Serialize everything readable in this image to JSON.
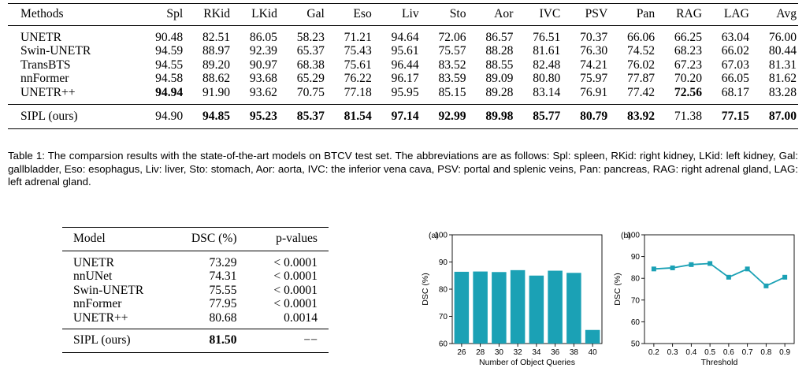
{
  "table1": {
    "headers": [
      "Methods",
      "Spl",
      "RKid",
      "LKid",
      "Gal",
      "Eso",
      "Liv",
      "Sto",
      "Aor",
      "IVC",
      "PSV",
      "Pan",
      "RAG",
      "LAG",
      "Avg"
    ],
    "rows": [
      [
        "UNETR",
        "90.48",
        "82.51",
        "86.05",
        "58.23",
        "71.21",
        "94.64",
        "72.06",
        "86.57",
        "76.51",
        "70.37",
        "66.06",
        "66.25",
        "63.04",
        "76.00"
      ],
      [
        "Swin-UNETR",
        "94.59",
        "88.97",
        "92.39",
        "65.37",
        "75.43",
        "95.61",
        "75.57",
        "88.28",
        "81.61",
        "76.30",
        "74.52",
        "68.23",
        "66.02",
        "80.44"
      ],
      [
        "TransBTS",
        "94.55",
        "89.20",
        "90.97",
        "68.38",
        "75.61",
        "96.44",
        "83.52",
        "88.55",
        "82.48",
        "74.21",
        "76.02",
        "67.23",
        "67.03",
        "81.31"
      ],
      [
        "nnFormer",
        "94.58",
        "88.62",
        "93.68",
        "65.29",
        "76.22",
        "96.17",
        "83.59",
        "89.09",
        "80.80",
        "75.97",
        "77.87",
        "70.20",
        "66.05",
        "81.62"
      ],
      [
        "UNETR++",
        "94.94",
        "91.90",
        "93.62",
        "70.75",
        "77.18",
        "95.95",
        "85.15",
        "89.28",
        "83.14",
        "76.91",
        "77.42",
        "72.56",
        "68.17",
        "83.28"
      ]
    ],
    "footer": [
      "SIPL (ours)",
      "94.90",
      "94.85",
      "95.23",
      "85.37",
      "81.54",
      "97.14",
      "92.99",
      "89.98",
      "85.77",
      "80.79",
      "83.92",
      "71.38",
      "77.15",
      "87.00"
    ],
    "bold": {
      "body": [
        [
          4,
          1
        ],
        [
          4,
          12
        ]
      ],
      "footer": [
        2,
        3,
        4,
        5,
        6,
        7,
        8,
        9,
        10,
        11,
        13,
        14
      ]
    },
    "caption": "Table 1: The comparsion results with the state-of-the-art models on BTCV test set. The abbreviations are as follows: Spl: spleen, RKid: right kidney, LKid: left kidney, Gal: gallbladder, Eso: esophagus, Liv: liver, Sto: stomach, Aor: aorta, IVC: the inferior vena cava, PSV: portal and splenic veins, Pan: pancreas, RAG: right adrenal gland, LAG: left adrenal gland."
  },
  "table2": {
    "headers": [
      "Model",
      "DSC (%)",
      "p-values"
    ],
    "rows": [
      [
        "UNETR",
        "73.29",
        "< 0.0001"
      ],
      [
        "nnUNet",
        "74.31",
        "< 0.0001"
      ],
      [
        "Swin-UNETR",
        "75.55",
        "< 0.0001"
      ],
      [
        "nnFormer",
        "77.95",
        "< 0.0001"
      ],
      [
        "UNETR++",
        "80.68",
        "0.0014"
      ]
    ],
    "footer": [
      "SIPL (ours)",
      "81.50",
      "−−"
    ]
  },
  "colors": {
    "series": "#1ba1b5"
  },
  "chart_data": [
    {
      "type": "bar",
      "panel_label": "(a)",
      "categories": [
        "26",
        "28",
        "30",
        "32",
        "34",
        "36",
        "38",
        "40"
      ],
      "values": [
        86.4,
        86.5,
        86.3,
        87.0,
        85.0,
        86.8,
        86.0,
        65.0
      ],
      "xlabel": "Number of Object Queries",
      "ylabel": "DSC (%)",
      "ylim": [
        60,
        100
      ],
      "yticks": [
        60,
        70,
        80,
        90,
        100
      ],
      "grid": false
    },
    {
      "type": "line",
      "panel_label": "(b)",
      "x": [
        "0.2",
        "0.3",
        "0.4",
        "0.5",
        "0.6",
        "0.7",
        "0.8",
        "0.9"
      ],
      "values": [
        84.3,
        84.8,
        86.3,
        86.8,
        80.5,
        84.3,
        76.5,
        80.5
      ],
      "xlabel": "Threshold",
      "ylabel": "DSC (%)",
      "ylim": [
        50,
        100
      ],
      "yticks": [
        50,
        60,
        70,
        80,
        90,
        100
      ],
      "grid": false
    }
  ]
}
